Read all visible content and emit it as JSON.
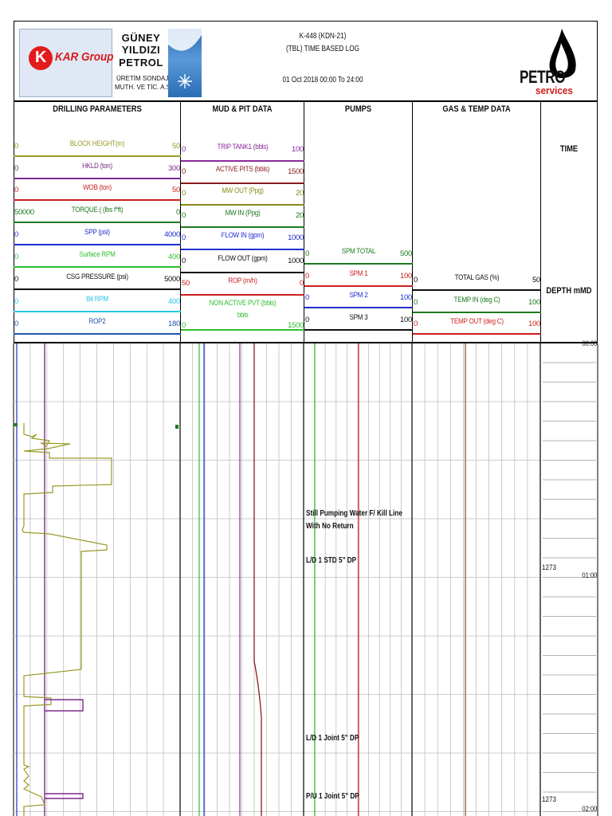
{
  "header": {
    "kar_logo_text": "KAR Group",
    "guney_line1": "GÜNEY",
    "guney_line2": "YILDIZI",
    "guney_line3": "PETROL",
    "guney_sub1": "ÜRETİM SONDAJ",
    "guney_sub2": "MUTH. VE TİC. A.Ş.",
    "well": "K-448 (KDN-21)",
    "log_type": "(TBL) TIME BASED LOG",
    "date_range": "01 Oct 2018 00:00 To 24:00",
    "petro_logo_text": "PETRO",
    "services_logo_text": "services"
  },
  "sections": {
    "drilling": "DRILLING PARAMETERS",
    "mud": "MUD & PIT DATA",
    "pumps": "PUMPS",
    "gas": "GAS & TEMP DATA",
    "time": "TIME",
    "depth": "DEPTH mMD"
  },
  "drilling_scales": [
    {
      "name": "BLOCK HEIGHT(m)",
      "lo": "0",
      "hi": "50",
      "color": "#9a9a2a"
    },
    {
      "name": "HKLD (ton)",
      "lo": "0",
      "hi": "300",
      "color": "#7b2a8c"
    },
    {
      "name": "WOB  (ton)",
      "lo": "0",
      "hi": "50",
      "color": "#cc1f1f"
    },
    {
      "name": "TORQUE ( (lbs f*ft)",
      "lo": "50000",
      "hi": "0",
      "color": "#1f7a1f"
    },
    {
      "name": "SPP (psi)",
      "lo": "0",
      "hi": "4000",
      "color": "#1f2fcc"
    },
    {
      "name": "Surface RPM",
      "lo": "0",
      "hi": "400",
      "color": "#2fbf2f"
    },
    {
      "name": "CSG PRESSURE (psi)",
      "lo": "0",
      "hi": "5000",
      "color": "#111111"
    },
    {
      "name": "Bit RPM",
      "lo": "0",
      "hi": "400",
      "color": "#29c6e6"
    },
    {
      "name": "ROP2",
      "lo": "0",
      "hi": "180",
      "color": "#2255aa"
    }
  ],
  "mud_scales": [
    {
      "name": "TRIP TANK1 (bbls)",
      "lo": "0",
      "hi": "100",
      "color": "#8a2a9a"
    },
    {
      "name": "ACTIVE PITS (bbls)",
      "lo": "0",
      "hi": "1500",
      "color": "#8a1a1a"
    },
    {
      "name": "MW OUT (Ppg)",
      "lo": "0",
      "hi": "20",
      "color": "#8a8a1a"
    },
    {
      "name": "MW IN (Ppg)",
      "lo": "0",
      "hi": "20",
      "color": "#1f7a1f"
    },
    {
      "name": "FLOW IN (gpm)",
      "lo": "0",
      "hi": "1000",
      "color": "#1f2fcc"
    },
    {
      "name": "FLOW OUT (gpm)",
      "lo": "0",
      "hi": "1000",
      "color": "#111111"
    },
    {
      "name": "ROP (m/h)",
      "lo": "50",
      "hi": "0",
      "color": "#cc1f1f"
    },
    {
      "name": "NON ACTIVE PVT (bbls)",
      "lo": "0",
      "hi": "1500",
      "color": "#2fbf2f",
      "sub": "bbls"
    }
  ],
  "pump_scales": [
    {
      "name": "SPM TOTAL",
      "lo": "0",
      "hi": "500",
      "color": "#1f7a1f"
    },
    {
      "name": "SPM 1",
      "lo": "0",
      "hi": "100",
      "color": "#cc1f1f"
    },
    {
      "name": "SPM 2",
      "lo": "0",
      "hi": "100",
      "color": "#1f2fcc"
    },
    {
      "name": "SPM 3",
      "lo": "0",
      "hi": "100",
      "color": "#111111"
    }
  ],
  "gas_scales": [
    {
      "name": "TOTAL GAS (%)",
      "lo": "0",
      "hi": "50",
      "color": "#111111"
    },
    {
      "name": "TEMP IN (deg C)",
      "lo": "0",
      "hi": "100",
      "color": "#1f7a1f"
    },
    {
      "name": "TEMP OUT (deg C)",
      "lo": "0",
      "hi": "100",
      "color": "#cc1f1f"
    }
  ],
  "annotations": [
    {
      "text": "Still Pumping Water F/ Kill Line"
    },
    {
      "text": "With No Return"
    },
    {
      "text": "L/D 1 STD 5\" DP"
    },
    {
      "text": "L/D 1 Joint 5\" DP"
    },
    {
      "text": "P/U 1 Joint 5\" DP"
    }
  ],
  "time_labels": [
    "00:00",
    "01:00",
    "02:00"
  ],
  "depth_labels": [
    "1273",
    "1273"
  ],
  "colors": {
    "block_height": "#9a9a2a",
    "hookload": "#7b2a8c",
    "spp": "#1f2fcc",
    "active_pits": "#8a1a1a",
    "mw": "#2fbf2f",
    "trip_tank": "#8a2a9a",
    "spm": "#cc1f1f",
    "temp": "#b09a80"
  }
}
